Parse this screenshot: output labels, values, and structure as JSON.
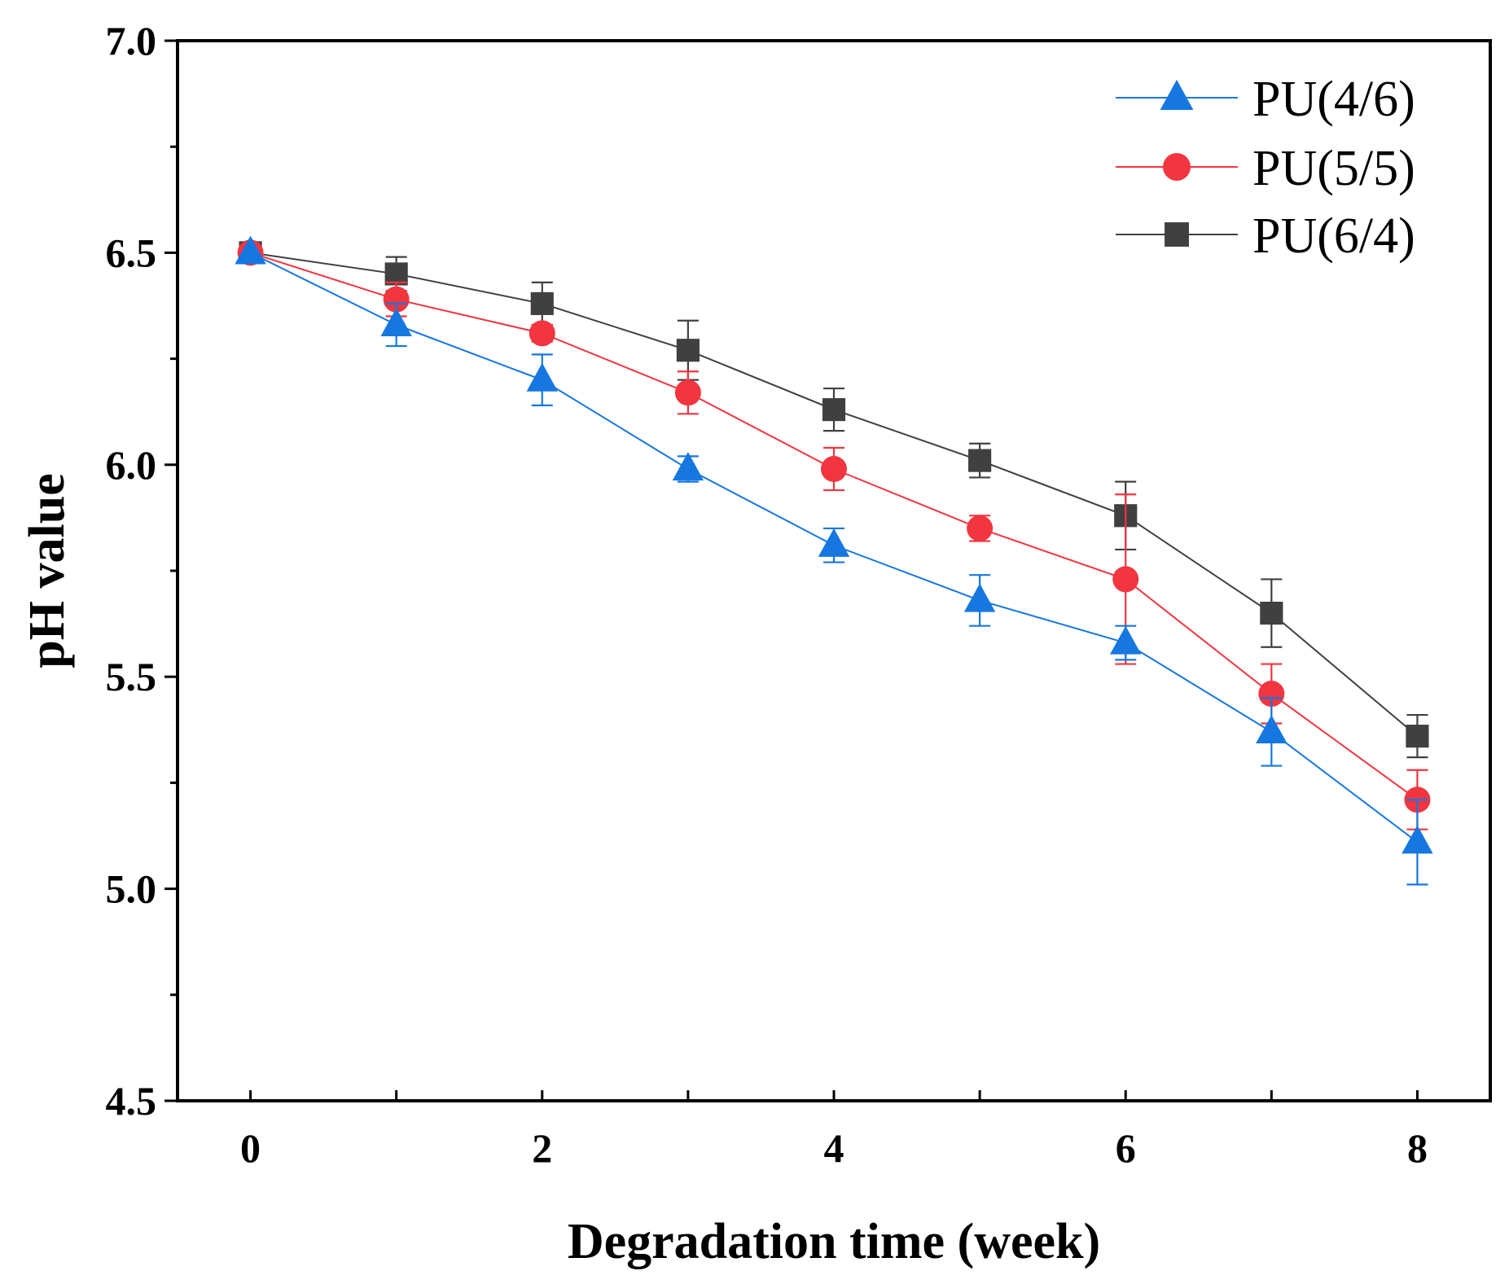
{
  "chart_data": {
    "type": "line",
    "title": "",
    "xlabel": "Degradation time (week)",
    "ylabel": "pH value",
    "x": [
      0,
      1,
      2,
      3,
      4,
      5,
      6,
      7,
      8
    ],
    "xlim": [
      -0.5,
      8.5
    ],
    "ylim": [
      4.5,
      7.0
    ],
    "x_ticks_labeled": [
      0,
      2,
      4,
      6,
      8
    ],
    "x_tick_labels": [
      "0",
      "2",
      "4",
      "6",
      "8"
    ],
    "y_ticks_labeled": [
      4.5,
      5.0,
      5.5,
      6.0,
      6.5,
      7.0
    ],
    "y_tick_labels": [
      "4.5",
      "5.0",
      "5.5",
      "6.0",
      "6.5",
      "7.0"
    ],
    "legend_position": "top-right",
    "grid": false,
    "series": [
      {
        "name": "PU(4/6)",
        "marker": "triangle",
        "color": "#1677e0",
        "values": [
          6.5,
          6.33,
          6.2,
          5.99,
          5.81,
          5.68,
          5.58,
          5.37,
          5.11
        ],
        "errors": [
          0.01,
          0.05,
          0.06,
          0.03,
          0.04,
          0.06,
          0.04,
          0.08,
          0.1
        ]
      },
      {
        "name": "PU(5/5)",
        "marker": "circle",
        "color": "#f2353f",
        "values": [
          6.5,
          6.39,
          6.31,
          6.17,
          5.99,
          5.85,
          5.73,
          5.46,
          5.21
        ],
        "errors": [
          0.01,
          0.04,
          0.02,
          0.05,
          0.05,
          0.03,
          0.2,
          0.07,
          0.07
        ]
      },
      {
        "name": "PU(6/4)",
        "marker": "square",
        "color": "#404040",
        "values": [
          6.5,
          6.45,
          6.38,
          6.27,
          6.13,
          6.01,
          5.88,
          5.65,
          5.36
        ],
        "errors": [
          0.01,
          0.04,
          0.05,
          0.07,
          0.05,
          0.04,
          0.08,
          0.08,
          0.05
        ]
      }
    ]
  }
}
